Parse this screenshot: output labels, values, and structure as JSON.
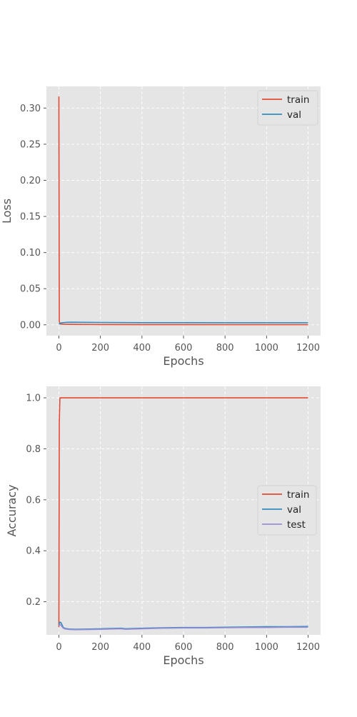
{
  "chart_data": [
    {
      "type": "line",
      "xlabel": "Epochs",
      "ylabel": "Loss",
      "xlim": [
        -60,
        1260
      ],
      "ylim": [
        -0.015,
        0.33
      ],
      "xticks": [
        0,
        200,
        400,
        600,
        800,
        1000,
        1200
      ],
      "xtick_labels": [
        "0",
        "200",
        "400",
        "600",
        "800",
        "1000",
        "1200"
      ],
      "yticks": [
        0.0,
        0.05,
        0.1,
        0.15,
        0.2,
        0.25,
        0.3
      ],
      "ytick_labels": [
        "0.00",
        "0.05",
        "0.10",
        "0.15",
        "0.20",
        "0.25",
        "0.30"
      ],
      "grid": true,
      "legend": "top-right",
      "series": [
        {
          "name": "train",
          "color": "#E24A33",
          "x": [
            0,
            2,
            5,
            10,
            20,
            50,
            100,
            200,
            400,
            600,
            800,
            1000,
            1200
          ],
          "y": [
            0.316,
            0.005,
            0.0015,
            0.001,
            0.0008,
            0.0006,
            0.0005,
            0.0004,
            0.0003,
            0.0003,
            0.0002,
            0.0002,
            0.0002
          ]
        },
        {
          "name": "val",
          "color": "#348ABD",
          "x": [
            0,
            5,
            10,
            20,
            40,
            60,
            100,
            200,
            400,
            600,
            800,
            1000,
            1200
          ],
          "y": [
            0.001,
            0.002,
            0.0025,
            0.003,
            0.0035,
            0.0036,
            0.0035,
            0.0033,
            0.003,
            0.003,
            0.0029,
            0.0029,
            0.0029
          ]
        }
      ]
    },
    {
      "type": "line",
      "xlabel": "Epochs",
      "ylabel": "Accuracy",
      "xlim": [
        -60,
        1260
      ],
      "ylim": [
        0.07,
        1.045
      ],
      "xticks": [
        0,
        200,
        400,
        600,
        800,
        1000,
        1200
      ],
      "xtick_labels": [
        "0",
        "200",
        "400",
        "600",
        "800",
        "1000",
        "1200"
      ],
      "yticks": [
        0.2,
        0.4,
        0.6,
        0.8,
        1.0
      ],
      "ytick_labels": [
        "0.2",
        "0.4",
        "0.6",
        "0.8",
        "1.0"
      ],
      "grid": true,
      "legend": "center-right",
      "series": [
        {
          "name": "train",
          "color": "#E24A33",
          "x": [
            0,
            2,
            5,
            10,
            100,
            400,
            800,
            1200
          ],
          "y": [
            0.1,
            0.9,
            1.0,
            1.0,
            1.0,
            1.0,
            1.0,
            1.0
          ]
        },
        {
          "name": "val",
          "color": "#348ABD",
          "x": [
            0,
            5,
            10,
            15,
            20,
            30,
            50,
            80,
            150,
            200,
            250,
            300,
            320,
            400,
            500,
            600,
            700,
            800,
            900,
            1000,
            1100,
            1200
          ],
          "y": [
            0.11,
            0.12,
            0.118,
            0.11,
            0.1,
            0.095,
            0.093,
            0.092,
            0.093,
            0.094,
            0.095,
            0.096,
            0.094,
            0.096,
            0.098,
            0.099,
            0.099,
            0.1,
            0.101,
            0.102,
            0.102,
            0.103
          ]
        },
        {
          "name": "test",
          "color": "#988ED5",
          "x": [
            0,
            5,
            10,
            15,
            20,
            30,
            50,
            80,
            150,
            200,
            250,
            300,
            320,
            400,
            500,
            600,
            700,
            800,
            900,
            1000,
            1100,
            1200
          ],
          "y": [
            0.105,
            0.11,
            0.108,
            0.102,
            0.097,
            0.093,
            0.091,
            0.09,
            0.091,
            0.092,
            0.093,
            0.094,
            0.092,
            0.094,
            0.096,
            0.097,
            0.097,
            0.098,
            0.099,
            0.099,
            0.1,
            0.1
          ]
        }
      ]
    }
  ]
}
